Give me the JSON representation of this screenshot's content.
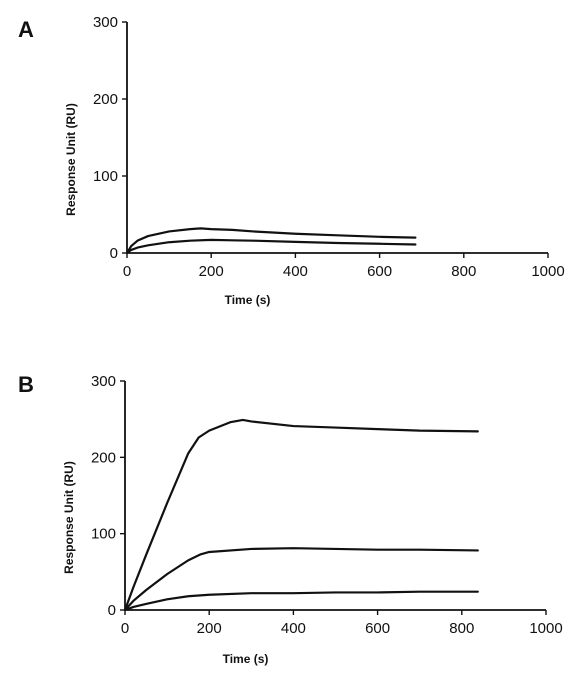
{
  "chart_data": [
    {
      "panel": "A",
      "type": "line",
      "xlabel": "Time (s)",
      "ylabel": "Response Unit (RU)",
      "xlim": [
        0,
        1000
      ],
      "ylim": [
        0,
        300
      ],
      "xticks": [
        "0",
        "200",
        "400",
        "600",
        "800",
        "1000"
      ],
      "yticks": [
        "0",
        "100",
        "200",
        "300"
      ],
      "grid": false,
      "series": [
        {
          "values": [
            [
              0,
              0
            ],
            [
              10,
              9
            ],
            [
              25,
              16
            ],
            [
              50,
              22
            ],
            [
              100,
              28
            ],
            [
              150,
              31
            ],
            [
              175,
              32
            ],
            [
              200,
              31
            ],
            [
              250,
              30
            ],
            [
              300,
              28
            ],
            [
              400,
              25
            ],
            [
              500,
              23
            ],
            [
              600,
              21
            ],
            [
              685,
              20
            ]
          ]
        },
        {
          "values": [
            [
              0,
              0
            ],
            [
              10,
              4
            ],
            [
              25,
              7
            ],
            [
              50,
              10
            ],
            [
              100,
              14
            ],
            [
              150,
              16
            ],
            [
              200,
              17
            ],
            [
              250,
              16.5
            ],
            [
              300,
              16
            ],
            [
              400,
              14.5
            ],
            [
              500,
              13
            ],
            [
              600,
              12
            ],
            [
              685,
              11
            ]
          ]
        }
      ]
    },
    {
      "panel": "B",
      "type": "line",
      "xlabel": "Time  (s)",
      "ylabel": "Response Unit (RU)",
      "xlim": [
        0,
        1000
      ],
      "ylim": [
        0,
        300
      ],
      "xticks": [
        "0",
        "200",
        "400",
        "600",
        "800",
        "1000"
      ],
      "yticks": [
        "0",
        "100",
        "200",
        "300"
      ],
      "grid": false,
      "series": [
        {
          "values": [
            [
              0,
              0
            ],
            [
              20,
              30
            ],
            [
              50,
              72
            ],
            [
              100,
              140
            ],
            [
              150,
              205
            ],
            [
              175,
              226
            ],
            [
              200,
              235
            ],
            [
              250,
              246
            ],
            [
              280,
              249
            ],
            [
              300,
              247
            ],
            [
              400,
              241
            ],
            [
              500,
              239
            ],
            [
              600,
              237
            ],
            [
              700,
              235
            ],
            [
              838,
              234
            ]
          ]
        },
        {
          "values": [
            [
              0,
              0
            ],
            [
              20,
              12
            ],
            [
              50,
              26
            ],
            [
              100,
              47
            ],
            [
              150,
              65
            ],
            [
              180,
              73
            ],
            [
              200,
              76
            ],
            [
              300,
              80
            ],
            [
              400,
              81
            ],
            [
              500,
              80
            ],
            [
              600,
              79
            ],
            [
              700,
              79
            ],
            [
              838,
              78
            ]
          ]
        },
        {
          "values": [
            [
              0,
              0
            ],
            [
              20,
              4
            ],
            [
              50,
              8
            ],
            [
              100,
              14
            ],
            [
              150,
              18
            ],
            [
              200,
              20
            ],
            [
              300,
              22
            ],
            [
              400,
              22
            ],
            [
              500,
              23
            ],
            [
              600,
              23
            ],
            [
              700,
              24
            ],
            [
              838,
              24
            ]
          ]
        }
      ]
    }
  ]
}
